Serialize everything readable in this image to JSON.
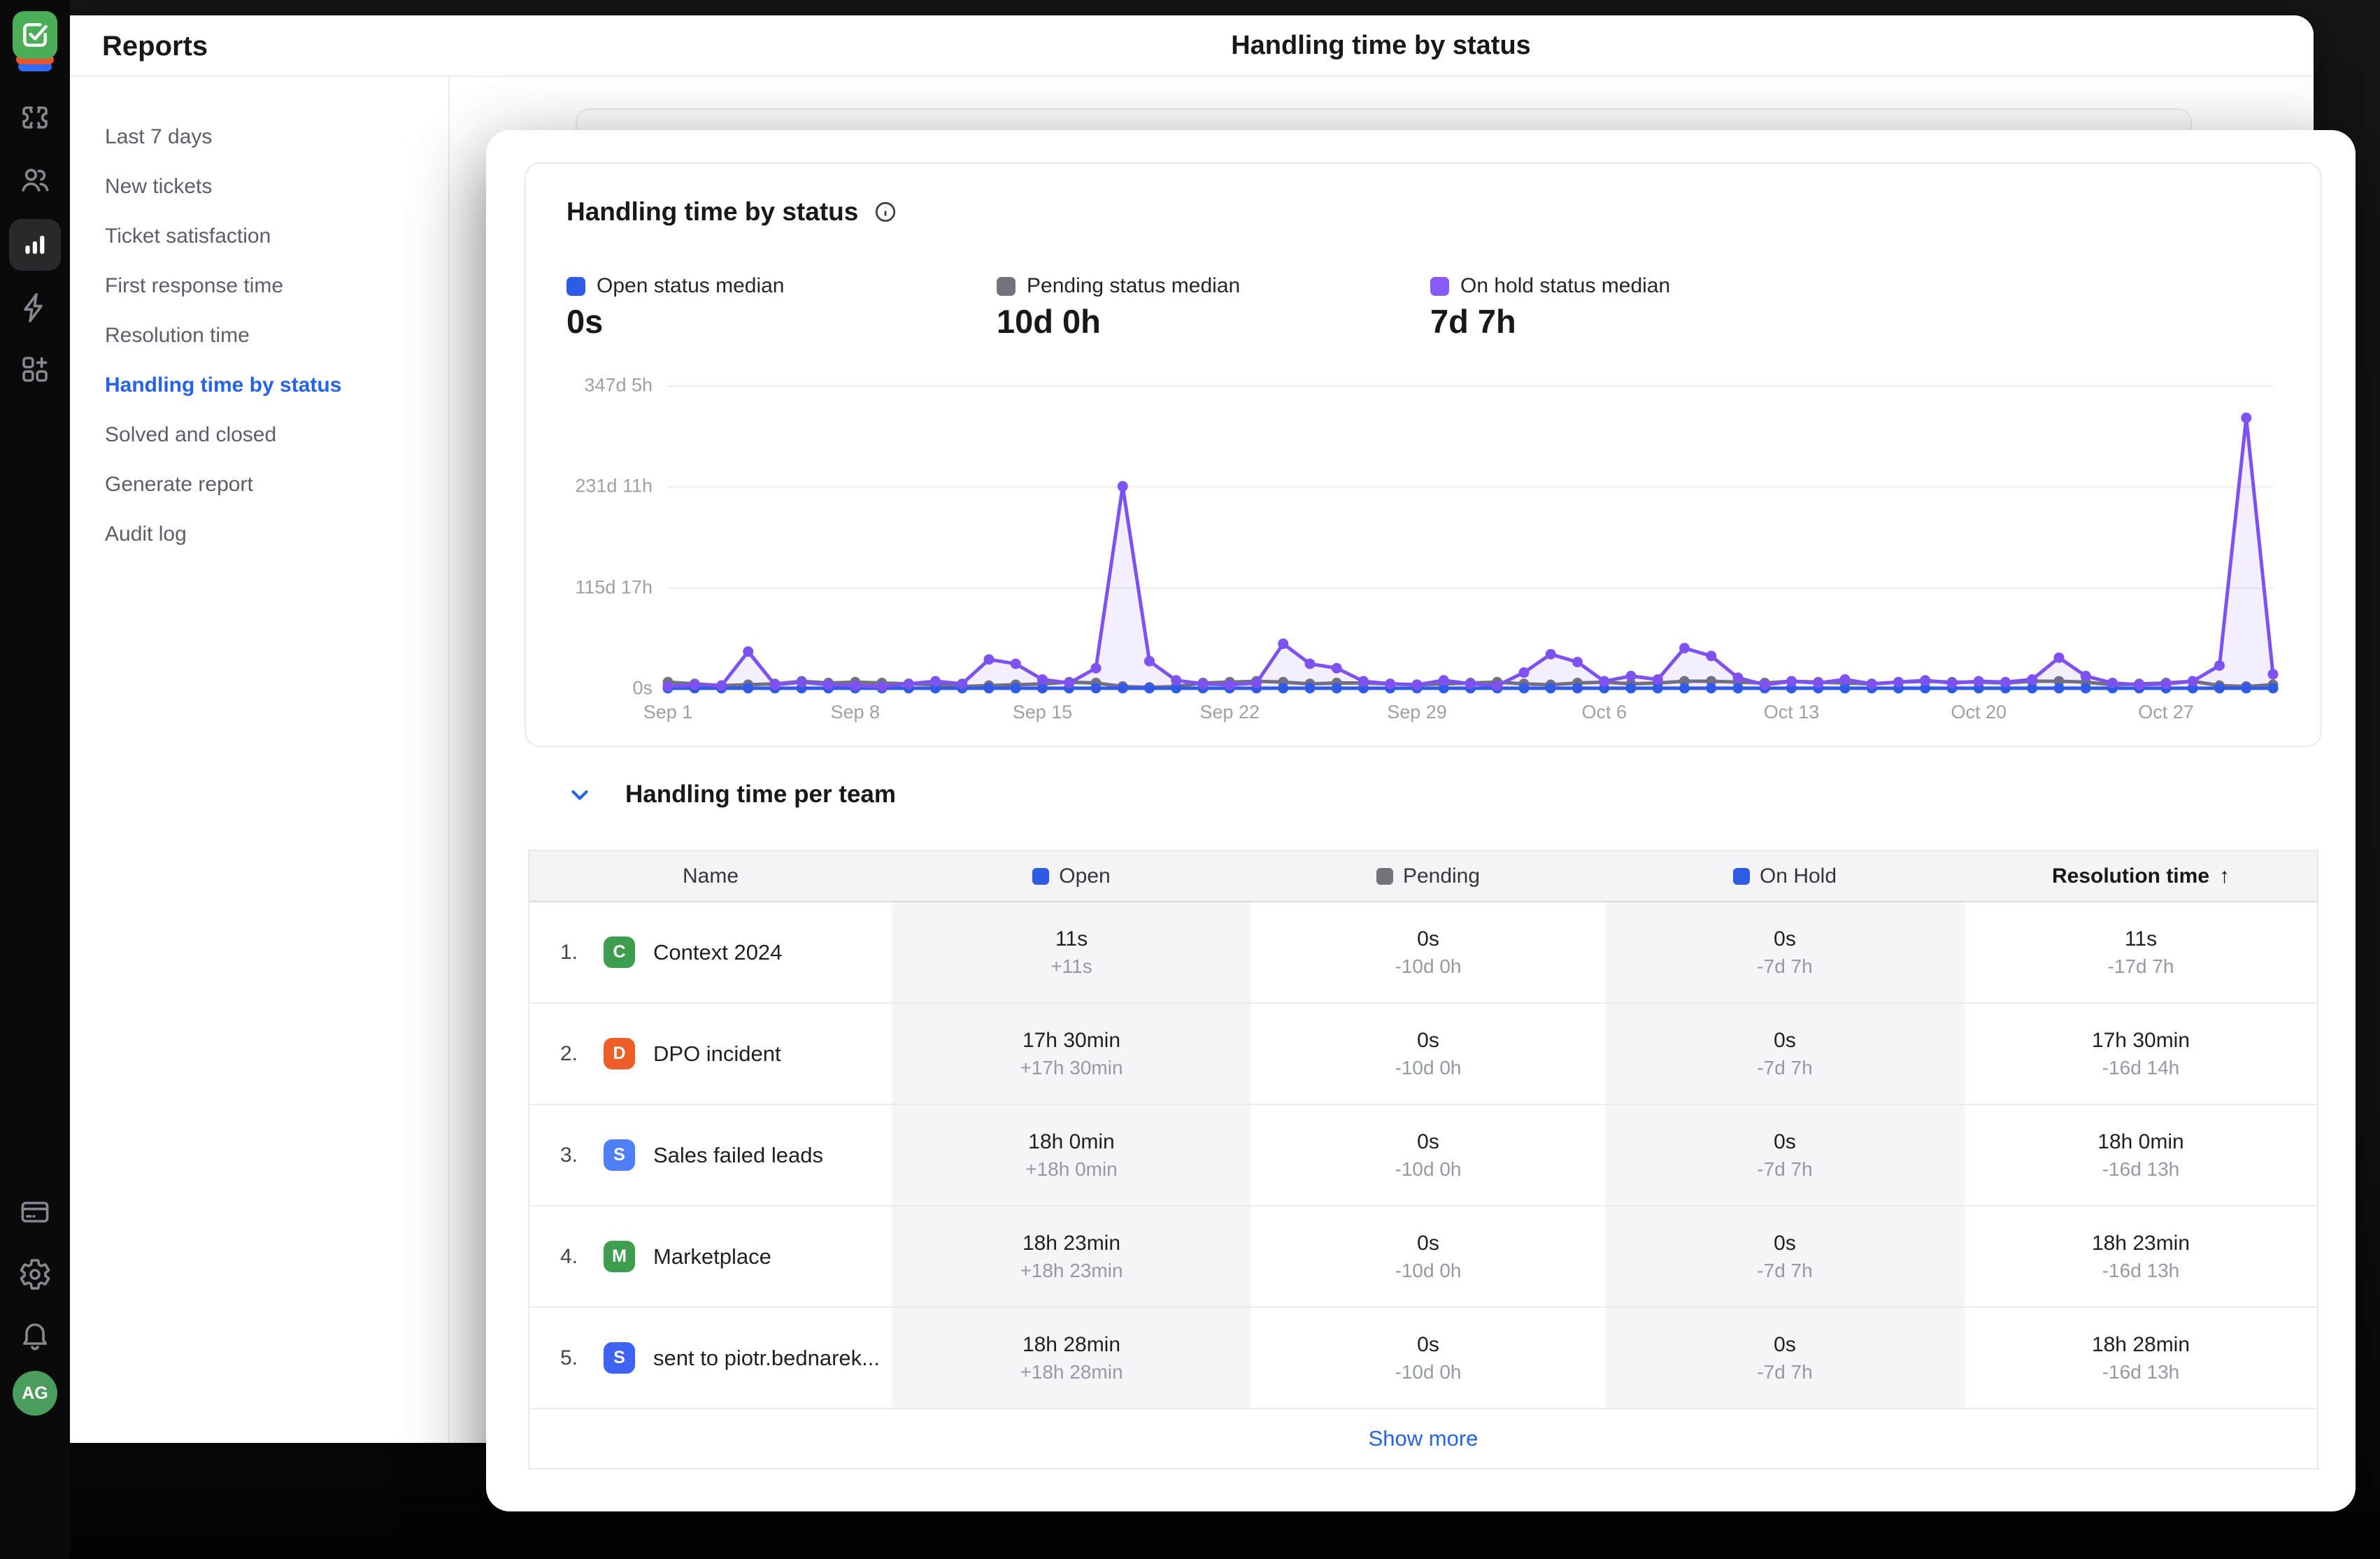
{
  "rail": {
    "avatar_initials": "AG",
    "icons": [
      "tickets-icon",
      "users-icon",
      "reports-icon",
      "automation-icon",
      "apps-icon",
      "billing-icon",
      "settings-icon",
      "notifications-icon"
    ]
  },
  "sidebar": {
    "title": "Reports",
    "items": [
      {
        "label": "Last 7 days",
        "active": false
      },
      {
        "label": "New tickets",
        "active": false
      },
      {
        "label": "Ticket satisfaction",
        "active": false
      },
      {
        "label": "First response time",
        "active": false
      },
      {
        "label": "Resolution time",
        "active": false
      },
      {
        "label": "Handling time by status",
        "active": true
      },
      {
        "label": "Solved and closed",
        "active": false
      },
      {
        "label": "Generate report",
        "active": false
      },
      {
        "label": "Audit log",
        "active": false
      }
    ]
  },
  "header": {
    "title": "Handling time by status"
  },
  "modal": {
    "card_title": "Handling time by status",
    "legend": [
      {
        "label": "Open status median",
        "value": "0s",
        "color": "#2e5be6"
      },
      {
        "label": "Pending status median",
        "value": "10d 0h",
        "color": "#71747b"
      },
      {
        "label": "On hold status median",
        "value": "7d 7h",
        "color": "#875bf7"
      }
    ],
    "section_title": "Handling time per team",
    "show_more": "Show more"
  },
  "chart_data": {
    "type": "line",
    "title": "Handling time by status",
    "unit": "days",
    "grid": "horizontal",
    "legend_position": "top",
    "total_days": 61,
    "x_tick_labels": [
      "Sep 1",
      "Sep 8",
      "Sep 15",
      "Sep 22",
      "Sep 29",
      "Oct 6",
      "Oct 13",
      "Oct 20",
      "Oct 27"
    ],
    "x_tick_day_offsets": [
      0,
      7,
      14,
      21,
      28,
      35,
      42,
      49,
      56
    ],
    "y_tick_labels": [
      "0s",
      "115d 17h",
      "231d 11h",
      "347d 5h"
    ],
    "y_max_days": 347.2,
    "series": [
      {
        "name": "Pending status median",
        "color": "#70737a",
        "values": [
          7,
          5,
          3,
          4,
          5,
          8,
          6,
          7,
          6,
          5,
          4,
          2,
          3,
          4,
          5,
          7,
          6,
          2,
          1,
          2,
          6,
          7,
          8,
          7,
          5,
          6,
          6,
          5,
          4,
          5,
          6,
          7,
          5,
          4,
          6,
          7,
          5,
          6,
          8,
          8,
          7,
          6,
          8,
          7,
          6,
          5,
          7,
          8,
          7,
          7,
          6,
          8,
          8,
          7,
          4,
          5,
          6,
          8,
          3,
          2,
          4
        ]
      },
      {
        "name": "Open status median",
        "color": "#2e5be6",
        "values": [
          0,
          0,
          0,
          0,
          0,
          0,
          0,
          0,
          0,
          0,
          0,
          0,
          0,
          0,
          0,
          0,
          0,
          0,
          0,
          0,
          0,
          0,
          0,
          0,
          0,
          0,
          0,
          0,
          0,
          0,
          0,
          0,
          0,
          0,
          0,
          0,
          0,
          0,
          0,
          0,
          0,
          0,
          0,
          0,
          0,
          0,
          0,
          0,
          0,
          0,
          0,
          0,
          0,
          0,
          0,
          0,
          0,
          0,
          0,
          0,
          0
        ]
      },
      {
        "name": "On hold status median",
        "color": "#7e52f0",
        "area": true,
        "values": [
          2,
          4,
          3,
          42,
          4,
          7,
          4,
          3,
          2,
          5,
          8,
          5,
          33,
          28,
          10,
          6,
          23,
          231.5,
          31,
          9,
          5,
          4,
          6,
          51,
          28,
          23,
          8,
          5,
          4,
          9,
          5,
          3,
          18,
          39,
          30,
          8,
          14,
          10,
          46,
          37,
          12,
          4,
          8,
          6,
          10,
          5,
          7,
          9,
          6,
          8,
          7,
          10,
          35,
          14,
          6,
          4,
          5,
          8,
          26,
          310,
          16
        ]
      }
    ]
  },
  "table": {
    "columns": [
      {
        "label": "Name"
      },
      {
        "label": "Open",
        "marker": "#2e5be6"
      },
      {
        "label": "Pending",
        "marker": "#71747b"
      },
      {
        "label": "On Hold",
        "marker": "#2e5be6"
      },
      {
        "label": "Resolution time",
        "sort": "↑"
      }
    ],
    "rows": [
      {
        "index": "1.",
        "initial": "C",
        "avatar_color": "#3f9e4e",
        "name": "Context 2024",
        "open_value": "11s",
        "open_delta": "+11s",
        "pending_value": "0s",
        "pending_delta": "-10d 0h",
        "onhold_value": "0s",
        "onhold_delta": "-7d 7h",
        "res_value": "11s",
        "res_delta": "-17d 7h"
      },
      {
        "index": "2.",
        "initial": "D",
        "avatar_color": "#ed5f28",
        "name": "DPO incident",
        "open_value": "17h 30min",
        "open_delta": "+17h 30min",
        "pending_value": "0s",
        "pending_delta": "-10d 0h",
        "onhold_value": "0s",
        "onhold_delta": "-7d 7h",
        "res_value": "17h 30min",
        "res_delta": "-16d 14h"
      },
      {
        "index": "3.",
        "initial": "S",
        "avatar_color": "#4f80f7",
        "name": "Sales failed leads",
        "open_value": "18h 0min",
        "open_delta": "+18h 0min",
        "pending_value": "0s",
        "pending_delta": "-10d 0h",
        "onhold_value": "0s",
        "onhold_delta": "-7d 7h",
        "res_value": "18h 0min",
        "res_delta": "-16d 13h"
      },
      {
        "index": "4.",
        "initial": "M",
        "avatar_color": "#3f9e4e",
        "name": "Marketplace",
        "open_value": "18h 23min",
        "open_delta": "+18h 23min",
        "pending_value": "0s",
        "pending_delta": "-10d 0h",
        "onhold_value": "0s",
        "onhold_delta": "-7d 7h",
        "res_value": "18h 23min",
        "res_delta": "-16d 13h"
      },
      {
        "index": "5.",
        "initial": "S",
        "avatar_color": "#3e63f4",
        "name": "sent to piotr.bednarek...",
        "open_value": "18h 28min",
        "open_delta": "+18h 28min",
        "pending_value": "0s",
        "pending_delta": "-10d 0h",
        "onhold_value": "0s",
        "onhold_delta": "-7d 7h",
        "res_value": "18h 28min",
        "res_delta": "-16d 13h"
      }
    ]
  }
}
